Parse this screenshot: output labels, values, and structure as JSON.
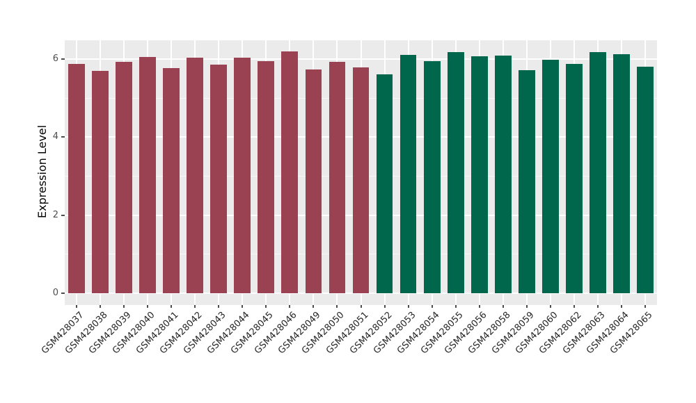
{
  "chart_data": {
    "type": "bar",
    "title": "",
    "xlabel": "",
    "ylabel": "Expression Level",
    "ylim": [
      0,
      6.5
    ],
    "yticks": [
      0,
      2,
      4,
      6
    ],
    "yminor": [
      1,
      3,
      5
    ],
    "grid": true,
    "legend": "none",
    "categories": [
      "GSM428037",
      "GSM428038",
      "GSM428039",
      "GSM428040",
      "GSM428041",
      "GSM428042",
      "GSM428043",
      "GSM428044",
      "GSM428045",
      "GSM428046",
      "GSM428049",
      "GSM428050",
      "GSM428051",
      "GSM428052",
      "GSM428053",
      "GSM428054",
      "GSM428055",
      "GSM428056",
      "GSM428058",
      "GSM428059",
      "GSM428060",
      "GSM428062",
      "GSM428063",
      "GSM428064",
      "GSM428065"
    ],
    "values": [
      5.87,
      5.69,
      5.93,
      6.06,
      5.77,
      6.03,
      5.85,
      6.03,
      5.94,
      6.19,
      5.74,
      5.93,
      5.79,
      5.61,
      6.1,
      5.94,
      6.17,
      6.07,
      6.09,
      5.72,
      5.99,
      5.87,
      6.18,
      6.13,
      5.81
    ],
    "groups": [
      "group1",
      "group1",
      "group1",
      "group1",
      "group1",
      "group1",
      "group1",
      "group1",
      "group1",
      "group1",
      "group1",
      "group1",
      "group1",
      "group2",
      "group2",
      "group2",
      "group2",
      "group2",
      "group2",
      "group2",
      "group2",
      "group2",
      "group2",
      "group2",
      "group2"
    ],
    "colors": {
      "group1": "#9B4252",
      "group2": "#00674C",
      "panel_bg": "#EBEBEB",
      "grid_major": "#FFFFFF",
      "grid_minor": "rgba(255,255,255,0.6)",
      "tick": "#4d4d4d"
    }
  }
}
